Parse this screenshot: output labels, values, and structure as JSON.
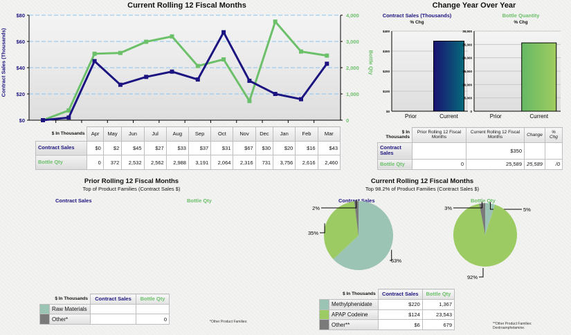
{
  "line_section": {
    "title": "Current Rolling 12 Fiscal Months",
    "left_axis_label": "Contract Sales (Thousands)",
    "right_axis_label": "Bottle Qty"
  },
  "monthly_table": {
    "corner": "$ In Thousands",
    "months": [
      "Apr",
      "May",
      "Jun",
      "Jul",
      "Aug",
      "Sep",
      "Oct",
      "Nov",
      "Dec",
      "Jan",
      "Feb",
      "Mar"
    ],
    "rows": [
      {
        "label": "Contract Sales",
        "values": [
          "$0",
          "$2",
          "$45",
          "$27",
          "$33",
          "$37",
          "$31",
          "$67",
          "$30",
          "$20",
          "$16",
          "$43"
        ]
      },
      {
        "label": "Bottle Qty",
        "values": [
          "0",
          "372",
          "2,532",
          "2,562",
          "2,988",
          "3,191",
          "2,064",
          "2,316",
          "731",
          "3,756",
          "2,616",
          "2,460"
        ]
      }
    ]
  },
  "yoy": {
    "title": "Change Year Over Year",
    "contract_title": "Contract Sales (Thousands)",
    "bottle_title": "Bottle Quantity",
    "pct_chg": "% Chg",
    "table": {
      "corner": "$ In Thousands",
      "headers": [
        "Prior Rolling 12 Fiscal Months",
        "Current Rolling 12 Fiscal Months",
        "Change",
        "% Chg"
      ],
      "rows": [
        {
          "label": "Contract Sales",
          "values": [
            "",
            "$350",
            "",
            ""
          ]
        },
        {
          "label": "Bottle Qty",
          "values": [
            "0",
            "25,589",
            "25,589",
            "/0"
          ]
        }
      ]
    }
  },
  "prior_section": {
    "title": "Prior Rolling 12 Fiscal Months",
    "subtitle": "Top  of Product Families (Contract Sales $)",
    "contract_label": "Contract Sales",
    "bottle_label": "Bottle Qty",
    "table": {
      "corner": "$ In Thousands",
      "headers": [
        "Contract Sales",
        "Bottle Qty"
      ],
      "rows": [
        {
          "label": "Raw Materials",
          "color": "#9bc4b4",
          "values": [
            "",
            ""
          ]
        },
        {
          "label": "Other*",
          "color": "#7a7a7a",
          "values": [
            "",
            "0"
          ]
        }
      ]
    },
    "footnote": "*Other Product Families:"
  },
  "current_section": {
    "title": "Current Rolling 12 Fiscal Months",
    "subtitle": "Top 98.2% of Product Families (Contract Sales $)",
    "contract_label": "Contract Sales",
    "bottle_label": "Bottle Qty",
    "table": {
      "corner": "$ In Thousands",
      "headers": [
        "Contract Sales",
        "Bottle Qty"
      ],
      "rows": [
        {
          "label": "Methylphenidate",
          "color": "#9bc4b4",
          "values": [
            "$220",
            "1,367"
          ]
        },
        {
          "label": "APAP Codeine",
          "color": "#9ccb64",
          "values": [
            "$124",
            "23,543"
          ]
        },
        {
          "label": "Other**",
          "color": "#7a7a7a",
          "values": [
            "$6",
            "679"
          ]
        }
      ]
    },
    "footnote": "**Other Product Families: Dextroamphetamine."
  },
  "colors": {
    "navy": "#1c1480",
    "green": "#6cc06a",
    "teal": "#9bc4b4",
    "apap": "#9ccb64",
    "other": "#7a7a7a"
  },
  "chart_data": [
    {
      "type": "line",
      "title": "Current Rolling 12 Fiscal Months",
      "categories": [
        "Apr",
        "May",
        "Jun",
        "Jul",
        "Aug",
        "Sep",
        "Oct",
        "Nov",
        "Dec",
        "Jan",
        "Feb",
        "Mar"
      ],
      "series": [
        {
          "name": "Contract Sales",
          "axis": "left",
          "values": [
            0,
            2,
            45,
            27,
            33,
            37,
            31,
            67,
            30,
            20,
            16,
            43
          ]
        },
        {
          "name": "Bottle Qty",
          "axis": "right",
          "values": [
            0,
            372,
            2532,
            2562,
            2988,
            3191,
            2064,
            2316,
            731,
            3756,
            2616,
            2460
          ]
        }
      ],
      "ylabel": "Contract Sales (Thousands)",
      "ylabel_right": "Bottle Qty",
      "ylim": [
        0,
        80
      ],
      "yticks": [
        "$0",
        "$20",
        "$40",
        "$60",
        "$80"
      ],
      "ylim_right": [
        0,
        4000
      ],
      "yticks_right": [
        "0",
        "1,000",
        "2,000",
        "3,000",
        "4,000"
      ],
      "grid": true
    },
    {
      "type": "bar",
      "title": "Contract Sales (Thousands)",
      "subtitle": "% Chg",
      "categories": [
        "Prior",
        "Current"
      ],
      "values": [
        0,
        350
      ],
      "ylim": [
        0,
        400
      ],
      "yticks": [
        "$0",
        "$100",
        "$200",
        "$300",
        "$400"
      ]
    },
    {
      "type": "bar",
      "title": "Bottle Quantity",
      "subtitle": "% Chg",
      "categories": [
        "Prior",
        "Current"
      ],
      "values": [
        0,
        25589
      ],
      "ylim": [
        0,
        30000
      ],
      "yticks": [
        "0",
        "5,000",
        "10,000",
        "15,000",
        "20,000",
        "25,000",
        "30,000"
      ]
    },
    {
      "type": "pie",
      "title": "Contract Sales",
      "categories": [
        "Methylphenidate",
        "APAP Codeine",
        "Other**"
      ],
      "values": [
        63,
        35,
        2
      ],
      "labels": [
        "63%",
        "35%",
        "2%"
      ]
    },
    {
      "type": "pie",
      "title": "Bottle Qty",
      "categories": [
        "Methylphenidate",
        "APAP Codeine",
        "Other**"
      ],
      "values": [
        5,
        92,
        3
      ],
      "labels": [
        "5%",
        "92%",
        "3%"
      ]
    }
  ]
}
